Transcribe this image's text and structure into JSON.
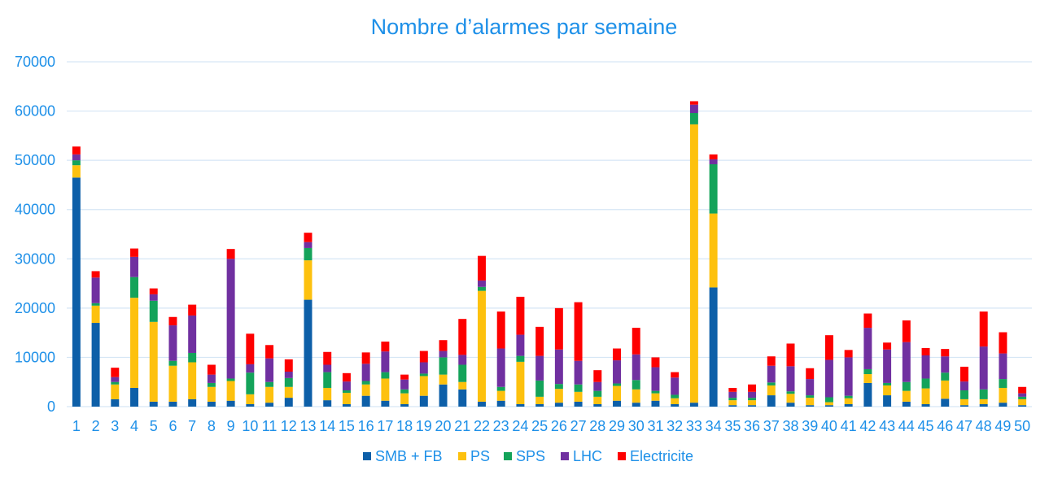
{
  "chart_data": {
    "type": "bar",
    "stacked": true,
    "title": "Nombre d’alarmes par semaine",
    "xlabel": "",
    "ylabel": "",
    "ylim": [
      0,
      70000
    ],
    "yticks": [
      "0",
      "10000",
      "20000",
      "30000",
      "40000",
      "50000",
      "60000",
      "70000"
    ],
    "grid": true,
    "legend_position": "bottom",
    "categories": [
      "1",
      "2",
      "3",
      "4",
      "5",
      "6",
      "7",
      "8",
      "9",
      "10",
      "11",
      "12",
      "13",
      "14",
      "15",
      "16",
      "17",
      "18",
      "19",
      "20",
      "21",
      "22",
      "23",
      "24",
      "25",
      "26",
      "27",
      "28",
      "29",
      "30",
      "31",
      "32",
      "33",
      "34",
      "35",
      "36",
      "37",
      "38",
      "39",
      "40",
      "41",
      "42",
      "43",
      "44",
      "45",
      "46",
      "47",
      "48",
      "49",
      "50"
    ],
    "series": [
      {
        "name": "SMB + FB",
        "color": "#0d5fa8",
        "values": [
          46500,
          17000,
          1500,
          3800,
          1000,
          1000,
          1500,
          1000,
          1200,
          500,
          800,
          1800,
          21700,
          1300,
          500,
          2200,
          1200,
          500,
          2200,
          4500,
          3500,
          1000,
          1200,
          500,
          500,
          800,
          1000,
          500,
          1200,
          800,
          1200,
          500,
          800,
          24200,
          300,
          300,
          2300,
          800,
          300,
          300,
          500,
          4800,
          2300,
          1000,
          500,
          1600,
          300,
          500,
          800,
          300
        ]
      },
      {
        "name": "PS",
        "color": "#fdc10e",
        "values": [
          2500,
          3500,
          3000,
          18300,
          16200,
          7300,
          7500,
          3000,
          4000,
          2000,
          3200,
          2200,
          8000,
          2500,
          2300,
          2300,
          4500,
          2200,
          4000,
          2000,
          1500,
          22500,
          2000,
          8600,
          1500,
          2800,
          2000,
          1500,
          3000,
          2700,
          1500,
          1200,
          56500,
          15000,
          1000,
          1000,
          2000,
          1800,
          1500,
          600,
          1200,
          1800,
          2000,
          2200,
          3200,
          3700,
          1200,
          1000,
          3000,
          1200
        ]
      },
      {
        "name": "SPS",
        "color": "#14a35a",
        "values": [
          1000,
          500,
          500,
          4200,
          4300,
          1000,
          1900,
          800,
          500,
          4400,
          1000,
          1800,
          2500,
          3200,
          500,
          700,
          1300,
          800,
          500,
          3500,
          3500,
          800,
          800,
          1200,
          3300,
          1000,
          1500,
          1200,
          500,
          1900,
          500,
          700,
          2300,
          10000,
          500,
          500,
          600,
          500,
          500,
          1000,
          500,
          1000,
          500,
          1800,
          2000,
          1600,
          1800,
          2000,
          1800,
          500
        ]
      },
      {
        "name": "LHC",
        "color": "#7030a0",
        "values": [
          1200,
          5200,
          1000,
          4100,
          1300,
          7200,
          7600,
          1700,
          24300,
          1700,
          4800,
          1300,
          1200,
          1500,
          1800,
          3500,
          4200,
          2000,
          2300,
          1300,
          2000,
          1300,
          7800,
          4300,
          5000,
          7000,
          4800,
          1800,
          4700,
          5200,
          4800,
          3500,
          1700,
          1000,
          1200,
          1200,
          3400,
          5100,
          3300,
          7600,
          7800,
          8400,
          6800,
          8100,
          4700,
          3300,
          1800,
          8700,
          5200,
          700
        ]
      },
      {
        "name": "Electricite",
        "color": "#fe0000",
        "values": [
          1600,
          1300,
          1900,
          1700,
          1200,
          1700,
          2200,
          2000,
          2000,
          6200,
          2700,
          2500,
          1900,
          2600,
          1700,
          2300,
          2000,
          1000,
          2300,
          2200,
          7300,
          5000,
          7500,
          7700,
          5900,
          8400,
          11900,
          2400,
          2400,
          5400,
          2000,
          1100,
          700,
          1000,
          800,
          1500,
          1900,
          4600,
          2200,
          5000,
          1500,
          2900,
          1400,
          4400,
          1500,
          1500,
          3000,
          7100,
          4300,
          1300
        ]
      }
    ]
  }
}
